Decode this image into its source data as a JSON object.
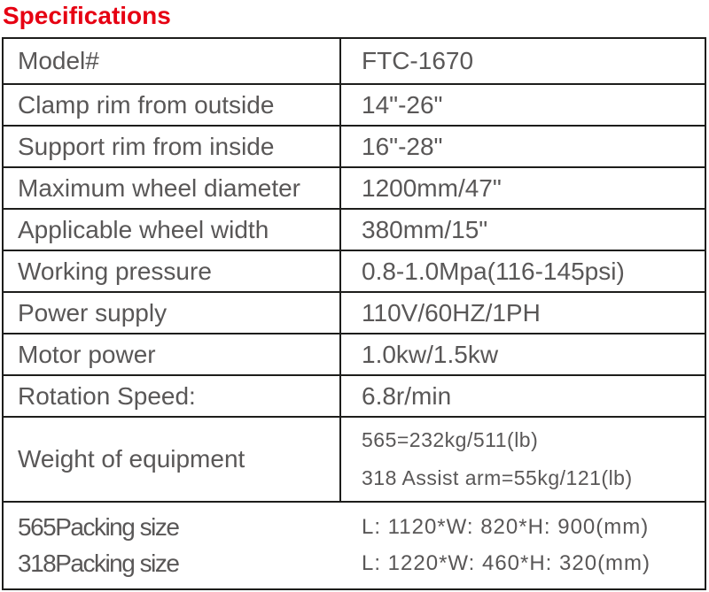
{
  "theme": {
    "accent_red": "#e60012",
    "text_gray": "#595757",
    "border_black": "#1d1d1b"
  },
  "page": {
    "title": "Specifications"
  },
  "spec_table": {
    "rows": [
      {
        "label": "Model#",
        "value": "FTC-1670"
      },
      {
        "label": "Clamp rim from outside",
        "value": "14\"-26\""
      },
      {
        "label": "Support rim from inside",
        "value": "16\"-28\""
      },
      {
        "label": "Maximum wheel diameter",
        "value": "1200mm/47\""
      },
      {
        "label": "Applicable wheel width",
        "value": "380mm/15\""
      },
      {
        "label": "Working pressure",
        "value": "0.8-1.0Mpa(116-145psi)"
      },
      {
        "label": "Power supply",
        "value": "110V/60HZ/1PH"
      },
      {
        "label": "Motor power",
        "value": "1.0kw/1.5kw"
      },
      {
        "label": "Rotation Speed:",
        "value": "6.8r/min"
      }
    ],
    "weight_row": {
      "label": "Weight of equipment",
      "value_line1": "565=232kg/511(lb)",
      "value_line2": "318 Assist arm=55kg/121(lb)"
    },
    "packing_rows": [
      {
        "label": "565Packing size",
        "value": "L: 1120*W: 820*H: 900(mm)"
      },
      {
        "label": "318Packing size",
        "value": "L: 1220*W: 460*H: 320(mm)"
      }
    ]
  }
}
